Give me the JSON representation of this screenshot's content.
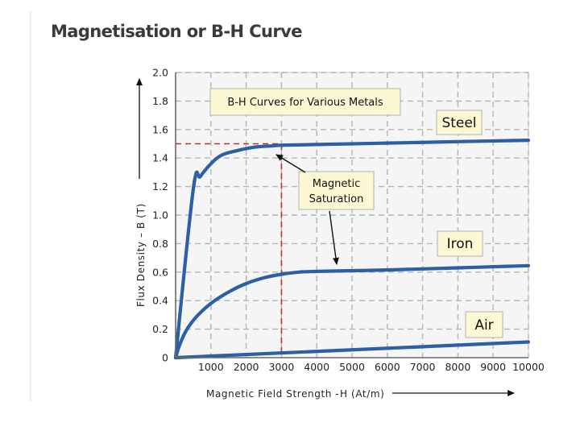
{
  "page": {
    "title": "Magnetisation or B-H Curve"
  },
  "chart_data": {
    "type": "line",
    "title": "B-H Curves for Various Metals",
    "xlabel": "Magnetic Field Strength -",
    "xlabel_unit": "H (At/m)",
    "ylabel": "Flux Density – B (T)",
    "xlim": [
      0,
      10000
    ],
    "ylim": [
      0,
      2.0
    ],
    "x_ticks": [
      1000,
      2000,
      3000,
      4000,
      5000,
      6000,
      7000,
      8000,
      9000,
      10000
    ],
    "y_ticks": [
      0,
      0.2,
      0.4,
      0.6,
      0.8,
      1.0,
      1.2,
      1.4,
      1.6,
      1.8,
      2.0
    ],
    "y_tick_labels": [
      "0",
      "0.2",
      "0.4",
      "0.6",
      "0.8",
      "1.0",
      "1.2",
      "1.4",
      "1.6",
      "1.8",
      "2.0"
    ],
    "grid": true,
    "series": [
      {
        "name": "Steel",
        "x": [
          0,
          500,
          700,
          1000,
          1300,
          1700,
          2200,
          2700,
          3000,
          4000,
          6000,
          8000,
          10000
        ],
        "values": [
          0,
          1.18,
          1.27,
          1.36,
          1.42,
          1.45,
          1.475,
          1.485,
          1.49,
          1.495,
          1.505,
          1.515,
          1.525
        ]
      },
      {
        "name": "Iron",
        "x": [
          0,
          100,
          300,
          600,
          1000,
          1500,
          2000,
          2500,
          3000,
          3500,
          4000,
          6000,
          8000,
          10000
        ],
        "values": [
          0,
          0.08,
          0.19,
          0.29,
          0.38,
          0.46,
          0.52,
          0.56,
          0.585,
          0.6,
          0.605,
          0.615,
          0.63,
          0.645
        ]
      },
      {
        "name": "Air",
        "x": [
          0,
          10000
        ],
        "values": [
          0,
          0.11
        ]
      }
    ],
    "saturation_point": {
      "x": 3000,
      "y": 1.5
    },
    "annotations": [
      {
        "text_line1": "Magnetic",
        "text_line2": "Saturation"
      }
    ],
    "series_labels": [
      "Steel",
      "Iron",
      "Air"
    ],
    "colors": {
      "curve": "#2c5fa3",
      "callout_bg": "#fdf8d4",
      "callout_border": "#b0b0b0",
      "guide": "#b83232",
      "grid": "#b4b4b4",
      "plot_bg": "#f5f5f5"
    }
  }
}
